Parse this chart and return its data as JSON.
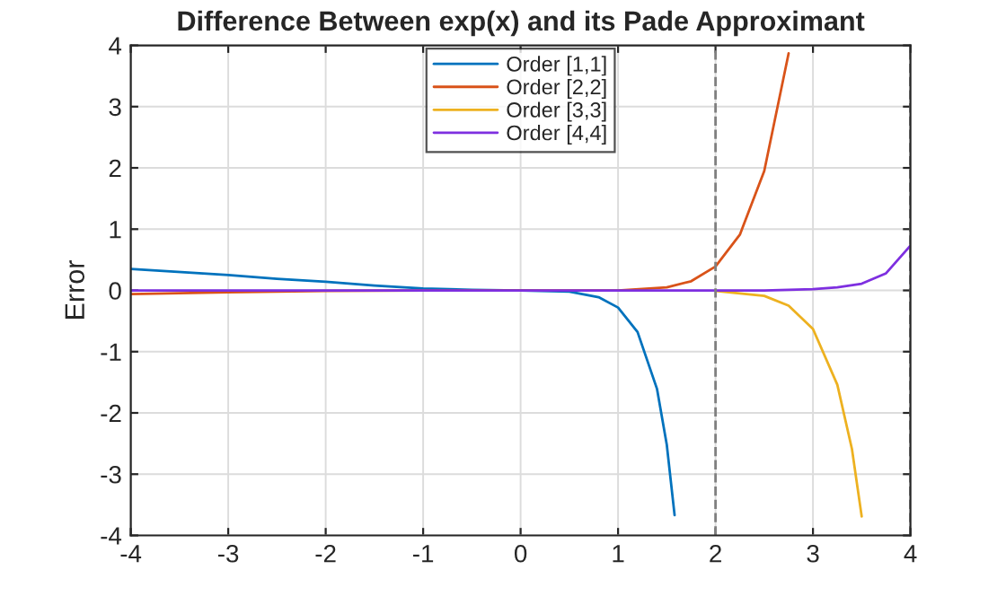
{
  "chart_data": {
    "type": "line",
    "title": "Difference Between exp(x) and its Pade Approximant",
    "ylabel": "Error",
    "xlim": [
      -4,
      4
    ],
    "ylim": [
      -4,
      4
    ],
    "xticks": [
      -4,
      -3,
      -2,
      -1,
      0,
      1,
      2,
      3,
      4
    ],
    "yticks": [
      -4,
      -3,
      -2,
      -1,
      0,
      1,
      2,
      3,
      4
    ],
    "grid": true,
    "legend": "top",
    "line_style": "solid",
    "marker": "none",
    "ref_lines": [
      {
        "axis": "x",
        "value": 2,
        "color": "#808080",
        "line_style": "dashed"
      },
      {
        "axis": "x",
        "value": 4,
        "color": "#808080",
        "line_style": "dashed"
      }
    ],
    "series": [
      {
        "name": "Order [1,1]",
        "color": "#0072bd",
        "x": [
          -4,
          -3,
          -2.5,
          -2,
          -1.5,
          -1,
          -0.5,
          0,
          0.5,
          0.8,
          1,
          1.2,
          1.4,
          1.5,
          1.58
        ],
        "values": [
          0.35,
          0.25,
          0.19,
          0.14,
          0.08,
          0.03,
          0.01,
          0,
          -0.02,
          -0.11,
          -0.28,
          -0.68,
          -1.61,
          -2.52,
          -3.67
        ]
      },
      {
        "name": "Order [2,2]",
        "color": "#d95319",
        "x": [
          -4,
          -3,
          -2,
          -1,
          0,
          1,
          1.5,
          1.75,
          2,
          2.25,
          2.5,
          2.75
        ],
        "values": [
          -0.06,
          -0.03,
          -0.01,
          0,
          0,
          0,
          0.05,
          0.15,
          0.39,
          0.91,
          1.95,
          3.87
        ]
      },
      {
        "name": "Order [3,3]",
        "color": "#edb120",
        "x": [
          2,
          2.5,
          2.75,
          3,
          3.25,
          3.4,
          3.5
        ],
        "values": [
          -0.01,
          -0.09,
          -0.25,
          -0.63,
          -1.54,
          -2.59,
          -3.69
        ]
      },
      {
        "name": "Order [4,4]",
        "color": "#7e2fe0",
        "x": [
          -4,
          -2,
          0,
          2,
          2.5,
          3,
          3.25,
          3.5,
          3.75,
          4
        ],
        "values": [
          0,
          0,
          0,
          0,
          0,
          0.02,
          0.05,
          0.11,
          0.28,
          0.73
        ]
      }
    ]
  }
}
